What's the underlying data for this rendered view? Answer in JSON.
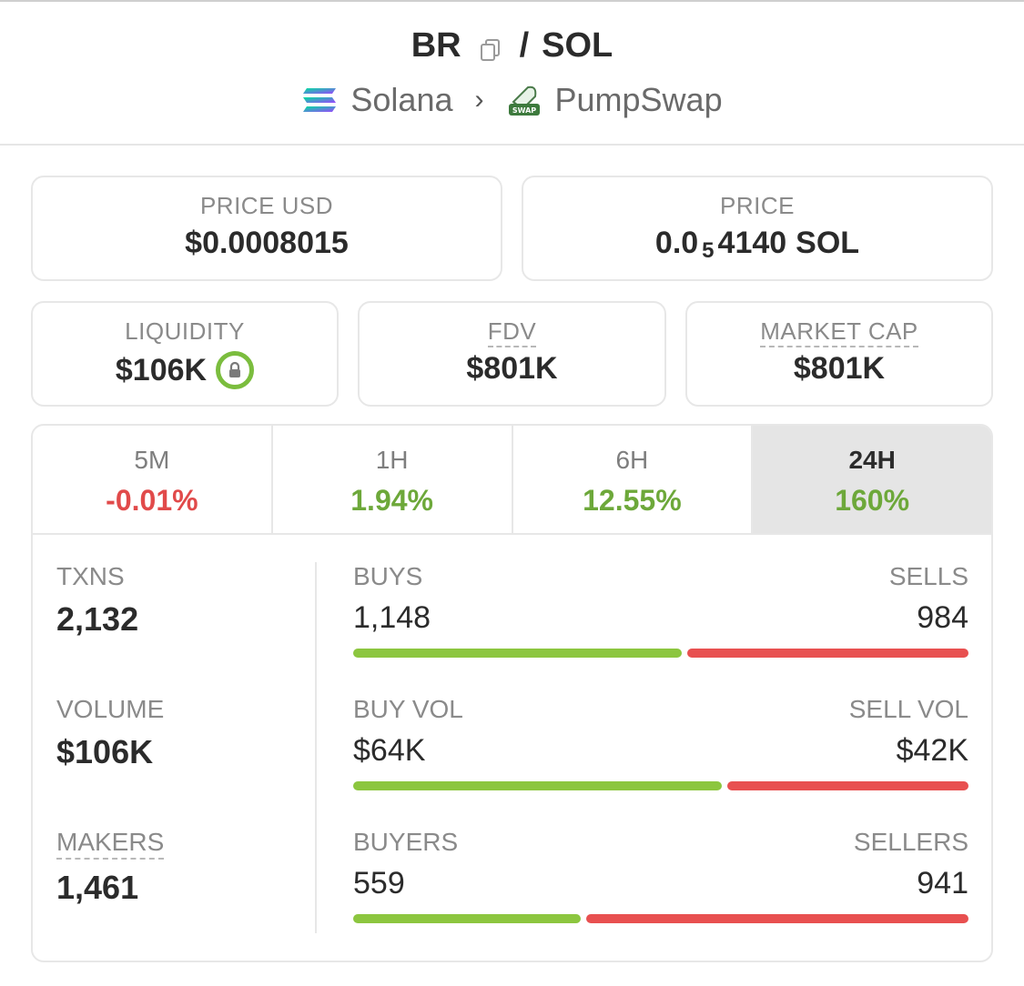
{
  "pair": {
    "base": "BR",
    "separator": "/",
    "quote": "SOL",
    "chain": "Solana",
    "dex": "PumpSwap"
  },
  "price_usd": {
    "label": "PRICE USD",
    "value": "$0.0008015"
  },
  "price_native": {
    "label": "PRICE",
    "prefix": "0.0",
    "zeros": "5",
    "digits": "4140",
    "unit": "SOL"
  },
  "liquidity": {
    "label": "LIQUIDITY",
    "value": "$106K"
  },
  "fdv": {
    "label": "FDV",
    "value": "$801K"
  },
  "market_cap": {
    "label": "MARKET CAP",
    "value": "$801K"
  },
  "timeframes": [
    {
      "label": "5M",
      "change": "-0.01%"
    },
    {
      "label": "1H",
      "change": "1.94%"
    },
    {
      "label": "6H",
      "change": "12.55%"
    },
    {
      "label": "24H",
      "change": "160%"
    }
  ],
  "active_timeframe": "24H",
  "stats": {
    "txns": {
      "label": "TXNS",
      "value": "2,132"
    },
    "volume": {
      "label": "VOLUME",
      "value": "$106K"
    },
    "makers": {
      "label": "MAKERS",
      "value": "1,461"
    }
  },
  "splits": {
    "buys": {
      "buy_label": "BUYS",
      "buy_value": "1,148",
      "sell_label": "SELLS",
      "sell_value": "984",
      "buy_fraction": 0.5385
    },
    "volume": {
      "buy_label": "BUY VOL",
      "buy_value": "$64K",
      "sell_label": "SELL VOL",
      "sell_value": "$42K",
      "buy_fraction": 0.6038
    },
    "makers": {
      "buy_label": "BUYERS",
      "buy_value": "559",
      "sell_label": "SELLERS",
      "sell_value": "941",
      "buy_fraction": 0.3727
    }
  },
  "colors": {
    "positive": "#6da83a",
    "negative": "#e14a4a",
    "buy_bar": "#8cc63f",
    "sell_bar": "#e85050",
    "lock_ring": "#7bbd3e"
  },
  "icons": {
    "copy": "copy-icon",
    "chain": "solana-icon",
    "dex": "pumpswap-icon",
    "chevron": "chevron-right-icon",
    "lock": "lock-icon"
  }
}
